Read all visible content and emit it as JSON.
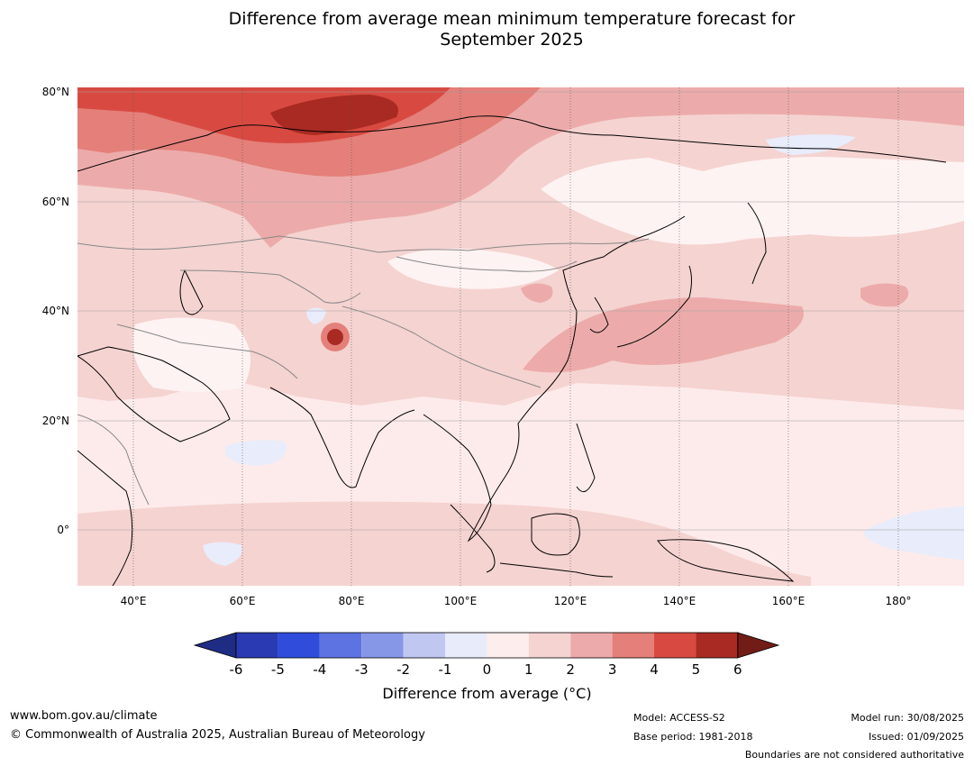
{
  "title_line1": "Difference from average mean minimum temperature forecast for",
  "title_line2": "September 2025",
  "map": {
    "lat_labels": [
      "80°N",
      "60°N",
      "40°N",
      "20°N",
      "0°"
    ],
    "lon_labels": [
      "40°E",
      "60°E",
      "80°E",
      "100°E",
      "120°E",
      "140°E",
      "160°E",
      "180°"
    ],
    "colors": {
      "ocean_base": "#fcebea",
      "land_neutral": "#fdf3f2",
      "anom_1_2": "#f5d3d1",
      "anom_2_3": "#ecabaa",
      "anom_3_4": "#e47f79",
      "anom_4_5": "#d84a41",
      "anom_5_6": "#a92a22",
      "anom_neg": "#e8ecfb"
    }
  },
  "colorbar": {
    "tick_labels": [
      "-6",
      "-5",
      "-4",
      "-3",
      "-2",
      "-1",
      "0",
      "1",
      "2",
      "3",
      "4",
      "5",
      "6"
    ],
    "colors": [
      "#1e2c83",
      "#2a3ab3",
      "#2f4cdb",
      "#5e73e2",
      "#8797e8",
      "#c0c8f2",
      "#e8ebfa",
      "#fdeeed",
      "#f5d3d1",
      "#ecabaa",
      "#e47f79",
      "#d84a41",
      "#a92a22",
      "#721c17"
    ],
    "label": "Difference from average (°C)"
  },
  "footer": {
    "website": "www.bom.gov.au/climate",
    "copyright": "© Commonwealth of Australia 2025, Australian Bureau of Meteorology",
    "model": "Model: ACCESS-S2",
    "base_period": "Base period: 1981-2018",
    "model_run": "Model run: 30/08/2025",
    "issued": "Issued: 01/09/2025",
    "disclaimer": "Boundaries are not considered authoritative"
  }
}
